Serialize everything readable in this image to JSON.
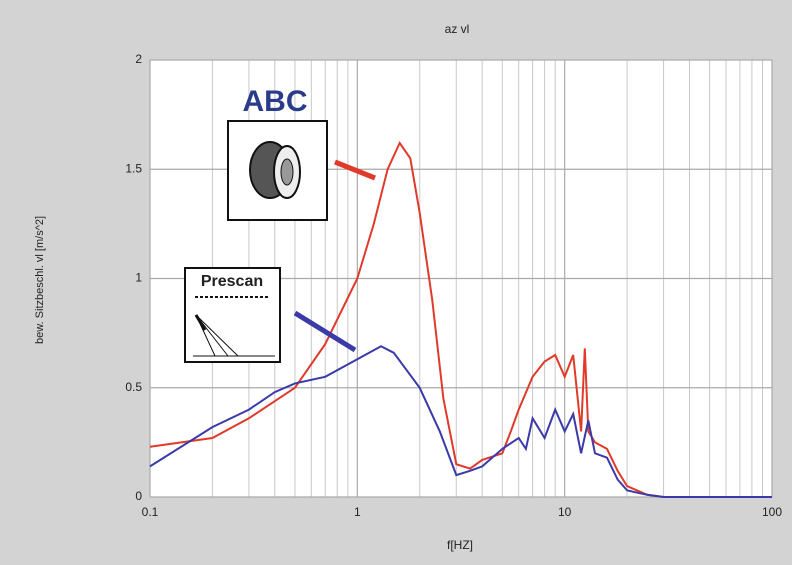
{
  "chart_data": {
    "type": "line",
    "title": "az vl",
    "x_label": "f[HZ]",
    "y_label": "bew. Sitzbeschl. vl [m/s^2]",
    "x_log": true,
    "xlim": [
      0.1,
      100
    ],
    "ylim": [
      0,
      2
    ],
    "xticks": [
      0.1,
      1,
      10,
      100
    ],
    "yticks": [
      0,
      0.5,
      1,
      1.5,
      2
    ],
    "xminorticks": [
      0.2,
      0.3,
      0.4,
      0.5,
      0.6,
      0.7,
      0.8,
      0.9,
      2,
      3,
      4,
      5,
      6,
      7,
      8,
      9,
      20,
      30,
      40,
      50,
      60,
      70,
      80,
      90
    ],
    "grid": true,
    "series": [
      {
        "name": "ABC",
        "color": "#e03a2a",
        "x": [
          0.1,
          0.2,
          0.3,
          0.5,
          0.7,
          1,
          1.2,
          1.4,
          1.6,
          1.8,
          2,
          2.3,
          2.6,
          3,
          3.5,
          4,
          5,
          5.5,
          6,
          7,
          8,
          9,
          10,
          11,
          12,
          12.5,
          13,
          14,
          16,
          18,
          20,
          25,
          30,
          100
        ],
        "values": [
          0.23,
          0.27,
          0.36,
          0.5,
          0.7,
          1.0,
          1.25,
          1.5,
          1.62,
          1.55,
          1.3,
          0.9,
          0.45,
          0.15,
          0.13,
          0.17,
          0.2,
          0.3,
          0.4,
          0.55,
          0.62,
          0.65,
          0.55,
          0.65,
          0.3,
          0.68,
          0.3,
          0.25,
          0.22,
          0.12,
          0.05,
          0.01,
          0,
          0
        ]
      },
      {
        "name": "Prescan",
        "color": "#3a3aa8",
        "x": [
          0.1,
          0.2,
          0.3,
          0.4,
          0.5,
          0.7,
          1,
          1.3,
          1.5,
          2,
          2.5,
          3,
          3.5,
          4,
          5,
          6,
          6.5,
          7,
          8,
          9,
          10,
          11,
          12,
          13,
          14,
          16,
          18,
          20,
          25,
          30,
          100
        ],
        "values": [
          0.14,
          0.32,
          0.4,
          0.48,
          0.52,
          0.55,
          0.63,
          0.69,
          0.66,
          0.5,
          0.3,
          0.1,
          0.12,
          0.14,
          0.22,
          0.27,
          0.22,
          0.36,
          0.27,
          0.4,
          0.3,
          0.38,
          0.2,
          0.35,
          0.2,
          0.18,
          0.08,
          0.03,
          0.01,
          0,
          0
        ]
      }
    ]
  }
}
